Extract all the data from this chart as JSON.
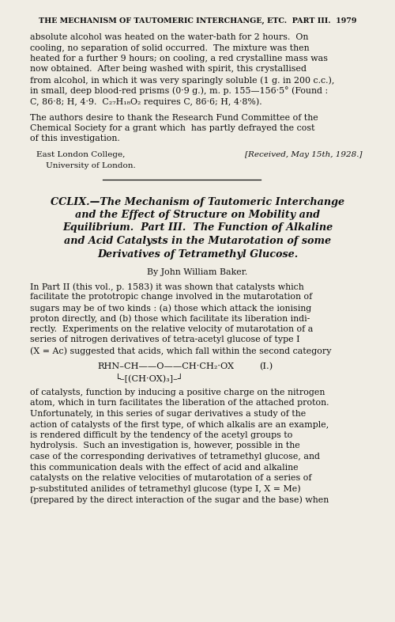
{
  "bg_color": "#f0ede4",
  "text_color": "#111111",
  "header": "THE MECHANISM OF TAUTOMERIC INTERCHANGE, ETC.  PART III.  1979",
  "para1_lines": [
    "absolute alcohol was heated on the water-bath for 2 hours.  On",
    "cooling, no separation of solid occurred.  The mixture was then",
    "heated for a further 9 hours; on cooling, a red crystalline mass was",
    "now obtained.  After being washed with spirit, this crystallised",
    "from alcohol, in which it was very sparingly soluble (1 g. in 200 c.c.),",
    "in small, deep blood-red prisms (0·9 g.), m. p. 155—156·5° (Found :",
    "C, 86·8; H, 4·9.  C₂₇H₁₈O₂ requires C, 86·6; H, 4·8%)."
  ],
  "para2_lines": [
    "The authors desire to thank the Research Fund Committee of the",
    "Chemical Society for a grant which  has partly defrayed the cost",
    "of this investigation."
  ],
  "address1": "East London College,",
  "address2": "University of London.",
  "received": "[Received, May 15th, 1928.]",
  "title_lines": [
    "CCLIX.—The Mechanism of Tautomeric Interchange",
    "and the Effect of Structure on Mobility and",
    "Equilibrium.  Part III.  The Function of Alkaline",
    "and Acid Catalysts in the Mutarotation of some",
    "Derivatives of Tetramethyl Glucose."
  ],
  "byline": "By John William Baker.",
  "body1_lines": [
    "In Part II (this vol., p. 1583) it was shown that catalysts which",
    "facilitate the prototropic change involved in the mutarotation of",
    "sugars may be of two kinds : (a) those which attack the ionising",
    "proton directly, and (b) those which facilitate its liberation indi-",
    "rectly.  Experiments on the relative velocity of mutarotation of a",
    "series of nitrogen derivatives of tetra-acetyl glucose of type I",
    "(X = Ac) suggested that acids, which fall within the second category"
  ],
  "formula_top": "RHN–CH——O——CH·CH₂·OX",
  "formula_label": "(I.)",
  "formula_bot": "└–[(CH·OX)₃]–┘",
  "body2_lines": [
    "of catalysts, function by inducing a positive charge on the nitrogen",
    "atom, which in turn facilitates the liberation of the attached proton.",
    "Unfortunately, in this series of sugar derivatives a study of the",
    "action of catalysts of the first type, of which alkalis are an example,",
    "is rendered difficult by the tendency of the acetyl groups to",
    "hydrolysis.  Such an investigation is, however, possible in the",
    "case of the corresponding derivatives of tetramethyl glucose, and",
    "this communication deals with the effect of acid and alkaline",
    "catalysts on the relative velocities of mutarotation of a series of",
    "p-substituted anilides of tetramethyl glucose (type I, X = Me)",
    "(prepared by the direct interaction of the sugar and the base) when"
  ]
}
